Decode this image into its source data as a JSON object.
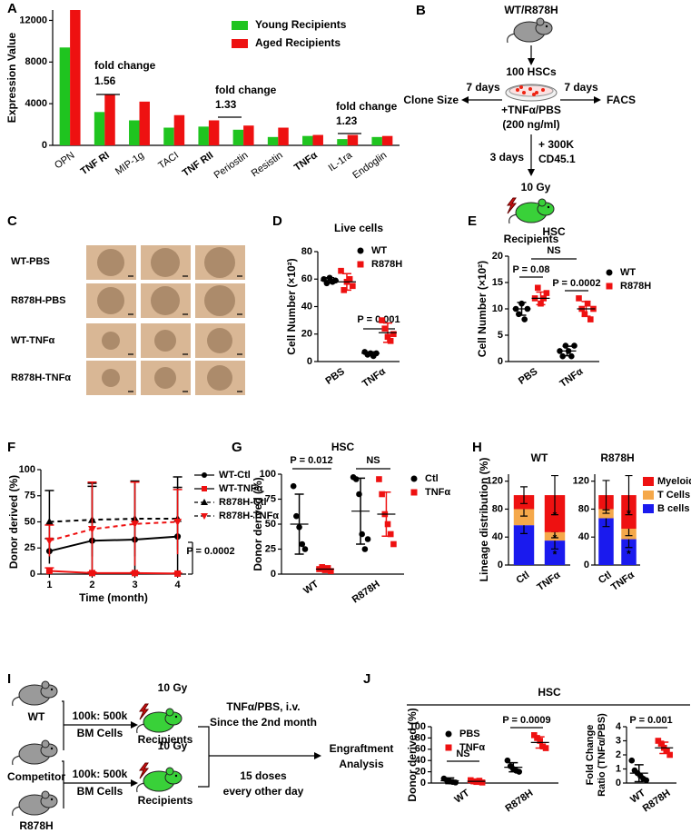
{
  "panel_b": {
    "label": "B",
    "strain": "WT/R878H",
    "cells": "100 HSCs",
    "treatment": "+TNFα/PBS",
    "dose": "(200 ng/ml)",
    "left_time": "7 days",
    "left_readout": "Clone Size",
    "right_time": "7 days",
    "right_readout": "FACS",
    "transplant_time": "3 days",
    "support": "+ 300K",
    "support_marker": "CD45.1",
    "irradiation": "10 Gy",
    "recipients": "Recipients"
  },
  "panel_c": {
    "label": "C",
    "rows": [
      "WT-PBS",
      "R878H-PBS",
      "WT-TNFα",
      "R878H-TNFα"
    ]
  },
  "panel_i": {
    "label": "I",
    "donor": "WT",
    "competitor": "Competitor",
    "mutant": "R878H",
    "ratio_top": "100k: 500k",
    "cells_top": "BM Cells",
    "ratio_bottom": "100k: 500k",
    "cells_bottom": "BM Cells",
    "irradiation_top": "10 Gy",
    "recipients_top": "Recipients",
    "irradiation_bottom": "10 Gy",
    "recipients_bottom": "Recipients",
    "treatment": "TNFα/PBS, i.v.",
    "start": "Since the 2nd month",
    "doses": "15 doses",
    "schedule": "every other day",
    "readout_1": "Engraftment",
    "readout_2": "Analysis"
  },
  "panel_j": {
    "title": "HSC"
  },
  "chart_data": [
    {
      "panel": "A",
      "type": "bar",
      "ylabel": "Expression Value",
      "categories": [
        "OPN",
        "TNF RI",
        "MIP-1g",
        "TACI",
        "TNF RII",
        "Periostin",
        "Resistin",
        "TNFα",
        "IL-1ra",
        "Endoglin"
      ],
      "series": [
        {
          "name": "Young Recipients",
          "color": "#1fc41f",
          "values": [
            9400,
            3200,
            2400,
            1700,
            1800,
            1500,
            800,
            900,
            600,
            800
          ]
        },
        {
          "name": "Aged Recipients",
          "color": "#ee1111",
          "values": [
            13000,
            4900,
            4200,
            2900,
            2400,
            1900,
            1700,
            1000,
            1000,
            900
          ]
        }
      ],
      "ylim": [
        0,
        13000
      ],
      "yticks": [
        0,
        4000,
        8000,
        12000
      ],
      "annotations": [
        {
          "text": "fold change",
          "value": "1.56"
        },
        {
          "text": "fold change",
          "value": "1.33"
        },
        {
          "text": "fold change",
          "value": "1.23"
        }
      ]
    },
    {
      "panel": "D",
      "type": "dot",
      "title": "Live cells",
      "ylabel": "Cell Number (×10²)",
      "categories": [
        "PBS",
        "TNFα"
      ],
      "series": [
        {
          "name": "WT",
          "color": "#000000",
          "marker": "circle",
          "values": [
            [
              60,
              57,
              61,
              58,
              59
            ],
            [
              7,
              5,
              6,
              4,
              6
            ]
          ],
          "mean": [
            59,
            6
          ],
          "sd": [
            2,
            1
          ]
        },
        {
          "name": "R878H",
          "color": "#ee1111",
          "marker": "square",
          "values": [
            [
              66,
              52,
              58,
              60,
              55
            ],
            [
              30,
              24,
              18,
              15,
              20
            ]
          ],
          "mean": [
            58,
            21
          ],
          "sd": [
            6,
            7
          ]
        }
      ],
      "ylim": [
        0,
        80
      ],
      "yticks": [
        0,
        20,
        40,
        60,
        80
      ],
      "annotations": [
        "P = 0.001"
      ]
    },
    {
      "panel": "E",
      "type": "dot",
      "title": "HSC",
      "ylabel": "Cell Number (×10²)",
      "categories": [
        "PBS",
        "TNFα"
      ],
      "series": [
        {
          "name": "WT",
          "color": "#000000",
          "marker": "circle",
          "values": [
            [
              10,
              9,
              11,
              8,
              10
            ],
            [
              2,
              1,
              3,
              2,
              1,
              3
            ]
          ],
          "mean": [
            10,
            2
          ],
          "sd": [
            1.2,
            0.9
          ]
        },
        {
          "name": "R878H",
          "color": "#ee1111",
          "marker": "square",
          "values": [
            [
              12,
              14,
              11,
              12,
              13
            ],
            [
              12,
              10,
              9,
              11,
              8,
              10
            ]
          ],
          "mean": [
            12,
            10
          ],
          "sd": [
            1.2,
            1.4
          ]
        }
      ],
      "ylim": [
        0,
        20
      ],
      "yticks": [
        0,
        5,
        10,
        15,
        20
      ],
      "annotations": [
        "NS",
        "P = 0.08",
        "P = 0.0002"
      ]
    },
    {
      "panel": "F",
      "type": "line",
      "ylabel": "Donor derived (%)",
      "xlabel": "Time (month)",
      "x": [
        1,
        2,
        3,
        4
      ],
      "xlim": [
        0.8,
        4.2
      ],
      "xticks": [
        1,
        2,
        3,
        4
      ],
      "ylim": [
        0,
        100
      ],
      "yticks": [
        0,
        25,
        50,
        75,
        100
      ],
      "series": [
        {
          "name": "WT-Ctl",
          "color": "#000000",
          "marker": "circle",
          "line_style": "solid",
          "values": [
            22,
            32,
            33,
            36
          ],
          "errors": [
            12,
            52,
            56,
            57
          ]
        },
        {
          "name": "WT-TNFα",
          "color": "#ee1111",
          "marker": "square",
          "line_style": "solid",
          "values": [
            3,
            1,
            1,
            0.5
          ],
          "errors": [
            3,
            1,
            1,
            0.5
          ]
        },
        {
          "name": "R878H-Ctl",
          "color": "#000000",
          "marker": "triangle",
          "line_style": "dashed",
          "values": [
            50,
            52,
            53,
            53
          ],
          "errors": [
            30,
            35,
            36,
            30
          ]
        },
        {
          "name": "R878H-TNFα",
          "color": "#ee1111",
          "marker": "triangle-down",
          "line_style": "dashed",
          "values": [
            32,
            43,
            48,
            50
          ],
          "errors": [
            15,
            45,
            40,
            31
          ]
        }
      ],
      "annotations": [
        "P = 0.0002"
      ]
    },
    {
      "panel": "G",
      "type": "dot",
      "title": "HSC",
      "ylabel": "Donor derived (%)",
      "categories": [
        "WT",
        "R878H"
      ],
      "series": [
        {
          "name": "Ctl",
          "color": "#000000",
          "marker": "circle",
          "values": [
            [
              88,
              58,
              47,
              30,
              25
            ],
            [
              97,
              95,
              80,
              40,
              25,
              35
            ]
          ],
          "mean": [
            50,
            63
          ],
          "sd": [
            30,
            33
          ]
        },
        {
          "name": "TNFα",
          "color": "#ee1111",
          "marker": "square",
          "values": [
            [
              5,
              7,
              4,
              6,
              3
            ],
            [
              95,
              80,
              60,
              50,
              40,
              30
            ]
          ],
          "mean": [
            5,
            60
          ],
          "sd": [
            2,
            22
          ]
        }
      ],
      "ylim": [
        0,
        100
      ],
      "yticks": [
        0,
        25,
        50,
        75,
        100
      ],
      "annotations": [
        "P = 0.012",
        "NS"
      ]
    },
    {
      "panel": "H",
      "type": "stacked_bar",
      "ylabel": "Lineage distribution (%)",
      "ylim": [
        0,
        130
      ],
      "yticks": [
        0,
        40,
        80,
        120
      ],
      "series": [
        {
          "name": "Myeloid",
          "color": "#ee1111"
        },
        {
          "name": "T Cells",
          "color": "#f5a84a"
        },
        {
          "name": "B cells",
          "color": "#1a1aee"
        }
      ],
      "subplots": [
        {
          "title": "WT",
          "categories": [
            "Ctl",
            "TNFα"
          ],
          "values": [
            [
              20,
              53
            ],
            [
              23,
              12
            ],
            [
              57,
              35
            ]
          ],
          "errors": [
            [
              12,
              28
            ],
            [
              10,
              8
            ],
            [
              12,
              12
            ]
          ],
          "annotations": [
            "*",
            "*",
            "*"
          ]
        },
        {
          "title": "R878H",
          "categories": [
            "Ctl",
            "TNFα"
          ],
          "values": [
            [
              20,
              48
            ],
            [
              13,
              15
            ],
            [
              67,
              37
            ]
          ],
          "errors": [
            [
              21,
              28
            ],
            [
              6,
              10
            ],
            [
              12,
              12
            ]
          ],
          "annotations": [
            "*",
            "*"
          ]
        }
      ]
    },
    {
      "panel": "J",
      "type": "dot",
      "ylabel": "Donor derived (%)",
      "categories": [
        "WT",
        "R878H"
      ],
      "series": [
        {
          "name": "PBS",
          "color": "#000000",
          "marker": "circle",
          "values": [
            [
              8,
              5,
              3,
              2,
              1
            ],
            [
              40,
              30,
              25,
              22,
              20
            ]
          ],
          "mean": [
            4,
            28
          ],
          "sd": [
            5,
            8
          ]
        },
        {
          "name": "TNFα",
          "color": "#ee1111",
          "marker": "square",
          "values": [
            [
              5,
              3,
              2,
              4,
              1
            ],
            [
              85,
              80,
              75,
              65,
              62
            ]
          ],
          "mean": [
            3,
            72
          ],
          "sd": [
            2,
            10
          ]
        }
      ],
      "ylim": [
        0,
        100
      ],
      "yticks": [
        0,
        20,
        40,
        60,
        80,
        100
      ],
      "annotations": [
        "NS",
        "P = 0.0009"
      ]
    },
    {
      "type": "dot",
      "ylabel": [
        "Fold Change",
        "Ratio (TNFα/PBS)"
      ],
      "categories": [
        "WT",
        "R878H"
      ],
      "series": [
        {
          "color": "#000000",
          "marker": "circle",
          "values": [
            [
              1.6,
              0.9,
              0.7,
              0.5,
              0.3,
              0.2
            ],
            null
          ],
          "mean": [
            0.7,
            null
          ],
          "sd": [
            0.6,
            null
          ]
        },
        {
          "color": "#ee1111",
          "marker": "square",
          "values": [
            null,
            [
              3.0,
              2.8,
              2.5,
              2.3,
              2.0
            ]
          ],
          "mean": [
            null,
            2.5
          ],
          "sd": [
            null,
            0.4
          ]
        }
      ],
      "ylim": [
        0,
        4
      ],
      "yticks": [
        0,
        1,
        2,
        3,
        4
      ],
      "annotations": [
        "P = 0.001"
      ]
    }
  ]
}
